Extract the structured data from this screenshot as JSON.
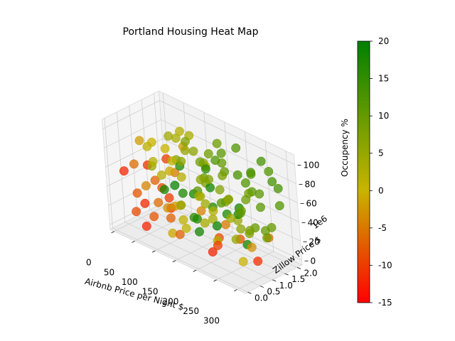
{
  "chart_data": {
    "type": "scatter",
    "projection": "3d",
    "title": "Portland Housing Heat Map",
    "xlabel": "Airbnb Price per Night $",
    "ylabel": "Zillow Price $",
    "y_offset_label": "1e6",
    "zlabel": "Occupency %",
    "xlim": [
      -10,
      320
    ],
    "ylim": [
      -0.1,
      2.2
    ],
    "zlim": [
      -5,
      110
    ],
    "x_ticks": [
      "0",
      "50",
      "100",
      "150",
      "200",
      "250",
      "300"
    ],
    "y_ticks": [
      "0.0",
      "0.5",
      "1.0",
      "1.5",
      "2.0"
    ],
    "z_ticks": [
      "0",
      "20",
      "40",
      "60",
      "80",
      "100"
    ],
    "grid": true,
    "colorbar": {
      "range": [
        -15,
        20
      ],
      "ticks": [
        "-15",
        "-10",
        "-5",
        "0",
        "5",
        "10",
        "15",
        "20"
      ],
      "colors": [
        "#ff0000",
        "#c8b400",
        "#008000"
      ]
    },
    "points": [
      [
        10,
        0.3,
        55,
        -12
      ],
      [
        12,
        1.2,
        50,
        -11
      ],
      [
        15,
        1.9,
        48,
        -10
      ],
      [
        20,
        0.6,
        30,
        -8
      ],
      [
        25,
        1.5,
        25,
        -9
      ],
      [
        18,
        0.9,
        15,
        -12
      ],
      [
        22,
        1.8,
        10,
        -10
      ],
      [
        30,
        0.4,
        65,
        -6
      ],
      [
        35,
        1.1,
        40,
        -7
      ],
      [
        28,
        2.0,
        35,
        -5
      ],
      [
        40,
        0.2,
        20,
        -9
      ],
      [
        45,
        0.8,
        8,
        -8
      ],
      [
        38,
        1.6,
        5,
        -11
      ],
      [
        50,
        0.5,
        45,
        -4
      ],
      [
        55,
        1.3,
        2,
        -7
      ],
      [
        60,
        1.9,
        70,
        -2
      ],
      [
        65,
        0.7,
        28,
        -6
      ],
      [
        70,
        0.1,
        12,
        -12
      ],
      [
        75,
        1.4,
        18,
        -3
      ],
      [
        80,
        1.0,
        60,
        -1
      ],
      [
        85,
        0.3,
        80,
        2
      ],
      [
        90,
        1.7,
        90,
        3
      ],
      [
        95,
        0.9,
        75,
        1
      ],
      [
        100,
        2.1,
        55,
        4
      ],
      [
        105,
        0.5,
        95,
        0
      ],
      [
        110,
        1.2,
        85,
        5
      ],
      [
        115,
        1.8,
        65,
        6
      ],
      [
        120,
        0.2,
        40,
        -3
      ],
      [
        125,
        1.0,
        100,
        7
      ],
      [
        130,
        1.6,
        50,
        8
      ],
      [
        135,
        0.6,
        70,
        2
      ],
      [
        140,
        2.0,
        88,
        9
      ],
      [
        145,
        1.3,
        35,
        4
      ],
      [
        150,
        0.4,
        92,
        6
      ],
      [
        155,
        1.9,
        72,
        10
      ],
      [
        160,
        0.8,
        58,
        11
      ],
      [
        165,
        1.5,
        82,
        12
      ],
      [
        170,
        0.1,
        30,
        1
      ],
      [
        175,
        1.1,
        96,
        9
      ],
      [
        180,
        2.1,
        62,
        13
      ],
      [
        185,
        0.7,
        78,
        10
      ],
      [
        190,
        1.4,
        45,
        8
      ],
      [
        195,
        0.3,
        66,
        3
      ],
      [
        200,
        1.8,
        98,
        12
      ],
      [
        205,
        1.0,
        52,
        11
      ],
      [
        210,
        0.5,
        84,
        7
      ],
      [
        215,
        1.6,
        38,
        9
      ],
      [
        220,
        2.0,
        74,
        13
      ],
      [
        225,
        0.9,
        90,
        10
      ],
      [
        230,
        1.3,
        26,
        6
      ],
      [
        235,
        0.2,
        60,
        2
      ],
      [
        240,
        1.7,
        80,
        12
      ],
      [
        245,
        1.1,
        48,
        11
      ],
      [
        250,
        0.6,
        70,
        8
      ],
      [
        255,
        1.9,
        94,
        13
      ],
      [
        260,
        1.4,
        32,
        10
      ],
      [
        265,
        0.4,
        56,
        4
      ],
      [
        270,
        1.0,
        86,
        12
      ],
      [
        275,
        1.6,
        22,
        9
      ],
      [
        280,
        2.1,
        68,
        13
      ],
      [
        285,
        0.8,
        42,
        8
      ],
      [
        290,
        1.2,
        76,
        11
      ],
      [
        295,
        0.3,
        18,
        0
      ],
      [
        300,
        1.8,
        58,
        12
      ],
      [
        305,
        1.5,
        88,
        13
      ],
      [
        40,
        1.0,
        82,
        0
      ],
      [
        60,
        0.5,
        88,
        1
      ],
      [
        80,
        1.5,
        95,
        2
      ],
      [
        100,
        0.8,
        30,
        -2
      ],
      [
        120,
        1.5,
        20,
        -4
      ],
      [
        140,
        0.3,
        15,
        -7
      ],
      [
        160,
        1.8,
        10,
        -5
      ],
      [
        180,
        1.2,
        8,
        -9
      ],
      [
        200,
        0.6,
        5,
        -12
      ],
      [
        220,
        1.4,
        12,
        -8
      ],
      [
        240,
        0.2,
        25,
        -10
      ],
      [
        260,
        1.9,
        15,
        -6
      ],
      [
        280,
        1.1,
        5,
        -11
      ],
      [
        300,
        0.6,
        30,
        -3
      ],
      [
        70,
        0.9,
        40,
        18
      ],
      [
        90,
        1.3,
        35,
        17
      ],
      [
        110,
        0.7,
        55,
        19
      ],
      [
        130,
        1.1,
        45,
        18
      ],
      [
        150,
        1.5,
        30,
        17
      ],
      [
        170,
        0.6,
        20,
        18
      ],
      [
        190,
        1.0,
        25,
        19
      ],
      [
        210,
        1.6,
        40,
        18
      ],
      [
        230,
        0.8,
        48,
        17
      ],
      [
        250,
        1.2,
        15,
        18
      ],
      [
        120,
        1.8,
        60,
        16
      ],
      [
        100,
        1.1,
        68,
        17
      ],
      [
        140,
        0.9,
        25,
        16
      ],
      [
        160,
        1.3,
        55,
        18
      ],
      [
        180,
        0.4,
        38,
        17
      ],
      [
        200,
        1.7,
        30,
        18
      ],
      [
        60,
        1.6,
        60,
        7
      ],
      [
        75,
        0.4,
        72,
        5
      ],
      [
        95,
        1.9,
        25,
        4
      ],
      [
        115,
        0.4,
        10,
        -1
      ],
      [
        135,
        1.7,
        12,
        3
      ],
      [
        155,
        0.2,
        50,
        5
      ],
      [
        175,
        1.6,
        90,
        11
      ],
      [
        195,
        0.9,
        12,
        2
      ],
      [
        215,
        0.1,
        90,
        6
      ],
      [
        235,
        1.5,
        55,
        9
      ],
      [
        255,
        0.7,
        28,
        5
      ],
      [
        275,
        0.2,
        80,
        6
      ],
      [
        295,
        1.5,
        38,
        10
      ],
      [
        310,
        0.9,
        70,
        11
      ],
      [
        315,
        0.4,
        92,
        9
      ],
      [
        50,
        1.8,
        78,
        3
      ],
      [
        70,
        1.2,
        92,
        4
      ],
      [
        85,
        0.6,
        62,
        2
      ],
      [
        105,
        1.6,
        78,
        6
      ],
      [
        125,
        0.7,
        22,
        1
      ],
      [
        145,
        1.9,
        42,
        7
      ],
      [
        165,
        0.9,
        88,
        9
      ],
      [
        185,
        1.9,
        18,
        5
      ],
      [
        205,
        0.3,
        40,
        3
      ],
      [
        225,
        1.7,
        15,
        7
      ],
      [
        245,
        0.5,
        95,
        8
      ],
      [
        265,
        1.3,
        72,
        11
      ],
      [
        285,
        1.7,
        92,
        12
      ],
      [
        305,
        1.1,
        42,
        10
      ],
      [
        35,
        0.6,
        88,
        -2
      ]
    ]
  }
}
